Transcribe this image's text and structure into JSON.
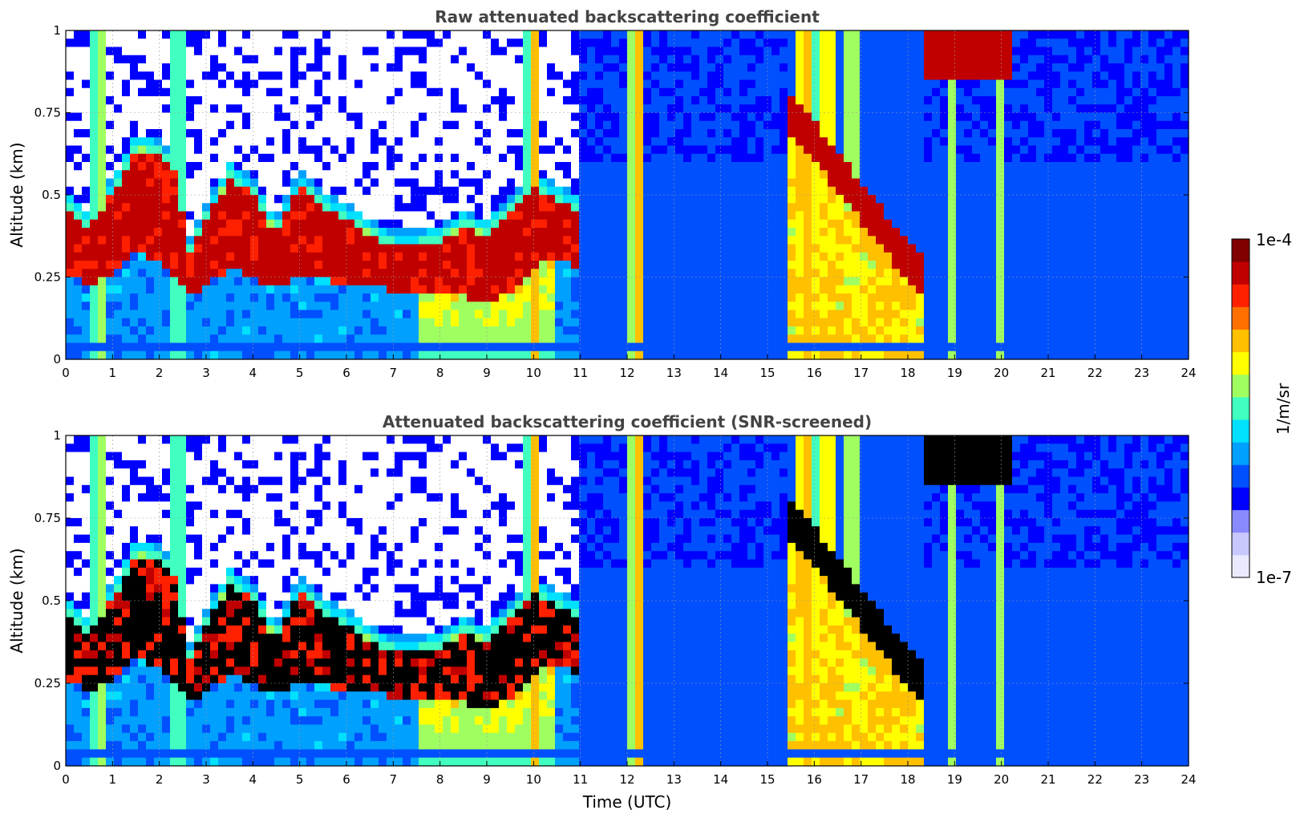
{
  "chart_data": [
    {
      "type": "heatmap",
      "title": "Raw attenuated backscattering coefficient",
      "xlabel": "",
      "ylabel": "Altitude (km)",
      "xlim": [
        0,
        24
      ],
      "ylim": [
        0,
        1
      ],
      "x_ticks": [
        "0",
        "1",
        "2",
        "3",
        "4",
        "5",
        "6",
        "7",
        "8",
        "9",
        "10",
        "11",
        "12",
        "13",
        "14",
        "15",
        "16",
        "17",
        "18",
        "19",
        "20",
        "21",
        "22",
        "23",
        "24"
      ],
      "y_ticks": [
        "0",
        "0.25",
        "0.5",
        "0.75",
        "1"
      ],
      "y_tick_values": [
        0,
        0.25,
        0.5,
        0.75,
        1
      ],
      "grid": true,
      "screened": false,
      "layer_top_km": [
        [
          0,
          0.46
        ],
        [
          0.5,
          0.4
        ],
        [
          1,
          0.5
        ],
        [
          1.5,
          0.64
        ],
        [
          2,
          0.62
        ],
        [
          2.4,
          0.55
        ],
        [
          2.6,
          0.3
        ],
        [
          3,
          0.42
        ],
        [
          3.5,
          0.55
        ],
        [
          4,
          0.5
        ],
        [
          4.5,
          0.38
        ],
        [
          5,
          0.52
        ],
        [
          5.5,
          0.46
        ],
        [
          6,
          0.42
        ],
        [
          6.5,
          0.38
        ],
        [
          7,
          0.34
        ],
        [
          7.5,
          0.34
        ],
        [
          8,
          0.36
        ],
        [
          8.5,
          0.4
        ],
        [
          9,
          0.38
        ],
        [
          9.5,
          0.44
        ],
        [
          10,
          0.52
        ],
        [
          10.5,
          0.48
        ],
        [
          11,
          0.44
        ]
      ],
      "layer_bottom_km": [
        [
          0,
          0.26
        ],
        [
          0.5,
          0.22
        ],
        [
          1,
          0.26
        ],
        [
          1.5,
          0.32
        ],
        [
          2,
          0.3
        ],
        [
          2.4,
          0.25
        ],
        [
          2.6,
          0.2
        ],
        [
          3,
          0.22
        ],
        [
          3.5,
          0.28
        ],
        [
          4,
          0.24
        ],
        [
          4.5,
          0.22
        ],
        [
          5,
          0.26
        ],
        [
          5.5,
          0.24
        ],
        [
          6,
          0.23
        ],
        [
          6.5,
          0.22
        ],
        [
          7,
          0.21
        ],
        [
          7.5,
          0.2
        ],
        [
          8,
          0.2
        ],
        [
          8.5,
          0.19
        ],
        [
          9,
          0.17
        ],
        [
          9.5,
          0.2
        ],
        [
          10,
          0.28
        ],
        [
          10.5,
          0.3
        ],
        [
          11,
          0.28
        ]
      ]
    },
    {
      "type": "heatmap",
      "title": "Attenuated backscattering coefficient (SNR-screened)",
      "xlabel": "Time (UTC)",
      "ylabel": "Altitude (km)",
      "xlim": [
        0,
        24
      ],
      "ylim": [
        0,
        1
      ],
      "x_ticks": [
        "0",
        "1",
        "2",
        "3",
        "4",
        "5",
        "6",
        "7",
        "8",
        "9",
        "10",
        "11",
        "12",
        "13",
        "14",
        "15",
        "16",
        "17",
        "18",
        "19",
        "20",
        "21",
        "22",
        "23",
        "24"
      ],
      "y_ticks": [
        "0",
        "0.25",
        "0.5",
        "0.75",
        "1"
      ],
      "y_tick_values": [
        0,
        0.25,
        0.5,
        0.75,
        1
      ],
      "grid": true,
      "screened": true
    }
  ],
  "colorbar": {
    "label": "1/m/sr",
    "max_label": "1e-4",
    "min_label": "1e-7",
    "colors": [
      "#eaeaff",
      "#c8c8ff",
      "#8a8aff",
      "#0000ff",
      "#0050ff",
      "#00a0ff",
      "#00e0ff",
      "#40ffc0",
      "#a0ff60",
      "#ffff00",
      "#ffc000",
      "#ff7000",
      "#ff2000",
      "#c00000",
      "#800000"
    ]
  }
}
